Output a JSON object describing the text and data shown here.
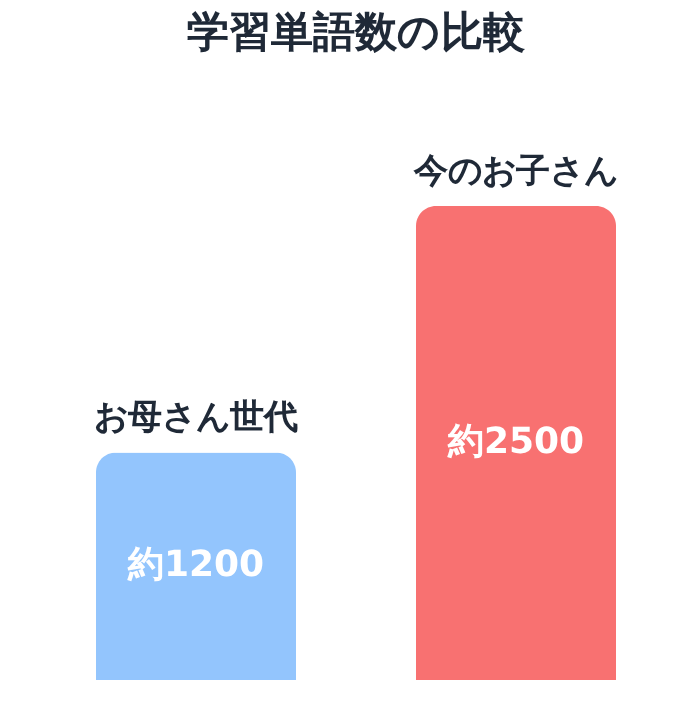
{
  "chart_data": {
    "type": "bar",
    "title": "学習単語数の比較",
    "categories": [
      "お母さん世代",
      "今のお子さん"
    ],
    "values": [
      1200,
      2500
    ],
    "value_labels": [
      "約1200",
      "約2500"
    ],
    "colors": [
      "#93c5fd",
      "#f87171"
    ]
  }
}
